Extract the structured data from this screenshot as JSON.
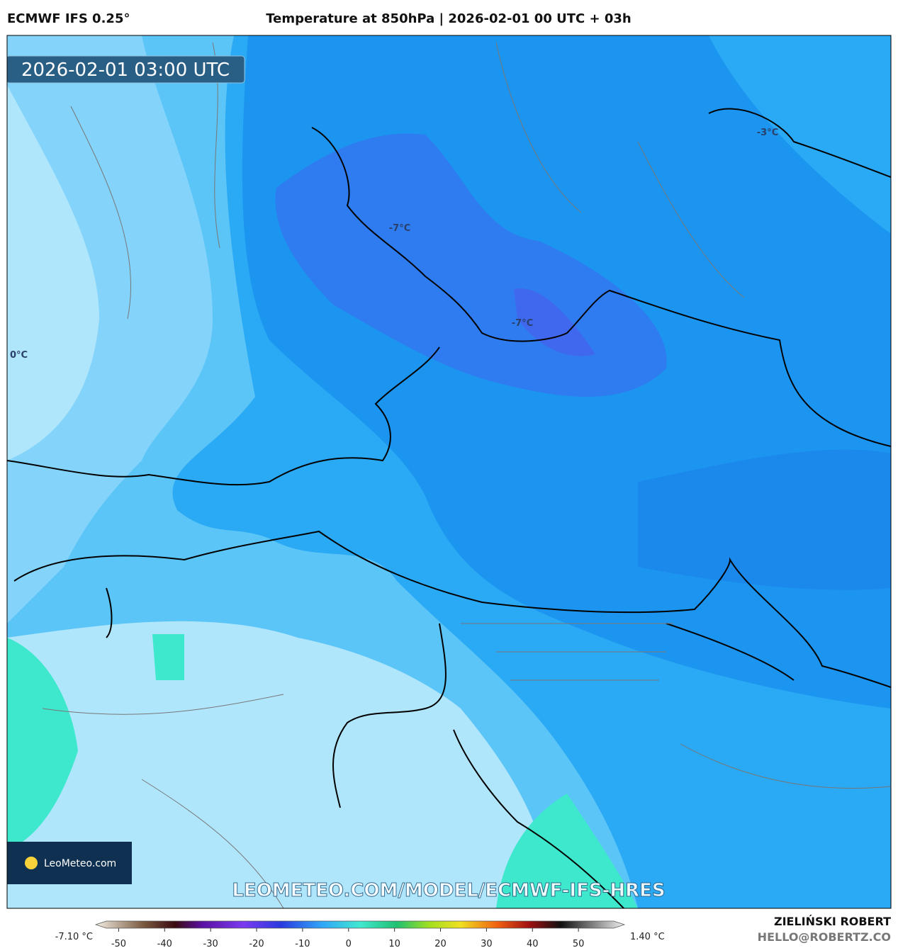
{
  "header": {
    "model": "ECMWF IFS 0.25°",
    "title": "Temperature at 850hPa | 2026-02-01 00 UTC + 03h"
  },
  "map": {
    "valid_time": "2026-02-01 03:00 UTC",
    "contour_labels": [
      "-7°C",
      "-7°C",
      "-3°C",
      "0°C"
    ],
    "logo": "LeoMeteo.com",
    "url": "LEOMETEO.COM/MODEL/ECMWF-IFS-HRES"
  },
  "legend": {
    "min_label": "-7.10 °C",
    "max_label": "1.40 °C",
    "lim": [
      -55,
      60
    ],
    "ticks": [
      -50,
      -40,
      -30,
      -20,
      -10,
      0,
      10,
      20,
      30,
      40,
      50
    ]
  },
  "footer": {
    "author": "ZIELIŃSKI ROBERT",
    "email": "HELLO@ROBERTZ.CO"
  }
}
